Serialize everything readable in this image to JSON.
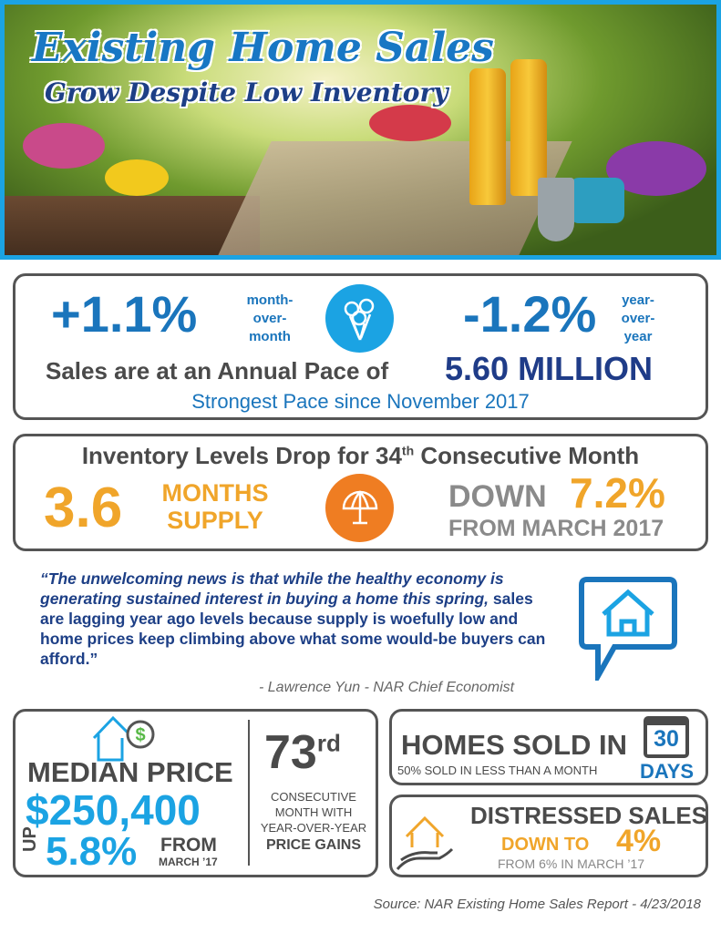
{
  "header": {
    "title": "Existing Home Sales",
    "subtitle": "Grow Despite Low Inventory"
  },
  "sales": {
    "mom_value": "+1.1%",
    "mom_label": [
      "month-",
      "over-",
      "month"
    ],
    "yoy_value": "-1.2%",
    "yoy_label": [
      "year-",
      "over-",
      "year"
    ],
    "pace_text": "Sales are at an Annual Pace of",
    "pace_value": "5.60 MILLION",
    "strongest": "Strongest Pace since November 2017",
    "icon": "bouquet-icon"
  },
  "inventory": {
    "headline_pre": "Inventory Levels Drop for 34",
    "headline_sup": "th",
    "headline_post": "Consecutive Month",
    "supply_value": "3.6",
    "supply_label": [
      "MONTHS",
      "SUPPLY"
    ],
    "down_word": "DOWN",
    "down_value": "7.2%",
    "from": "FROM MARCH 2017",
    "icon": "umbrella-icon"
  },
  "quote": {
    "text_a": "“The unwelcoming news is that while the healthy economy is generating sustained interest in buying a home this spring,",
    "text_b": "sales are lagging year ago levels because supply is woefully low and home prices keep climbing above what some would-be buyers can afford.”",
    "author": "- Lawrence Yun - NAR Chief Economist"
  },
  "median": {
    "label": "MEDIAN PRICE",
    "value": "$250,400",
    "up": "UP",
    "pct": "5.8%",
    "from": "FROM",
    "from_date": "MARCH ’17",
    "streak": "73",
    "streak_sup": "rd",
    "streak_lines": [
      "CONSECUTIVE",
      "MONTH WITH",
      "YEAR-OVER-YEAR",
      "PRICE GAINS"
    ]
  },
  "sold": {
    "title": "HOMES SOLD IN",
    "sub": "50% SOLD IN LESS THAN A MONTH",
    "days_num": "30",
    "days": "DAYS"
  },
  "distressed": {
    "title": "DISTRESSED SALES",
    "down_to": "DOWN TO",
    "value": "4%",
    "from": "FROM 6% IN MARCH ’17"
  },
  "source": "Source: NAR Existing Home Sales Report - 4/23/2018",
  "colors": {
    "blue": "#1a75bc",
    "navy": "#1f3c88",
    "cyan": "#1ba3e3",
    "orange": "#f0a52a",
    "gray": "#555555"
  }
}
